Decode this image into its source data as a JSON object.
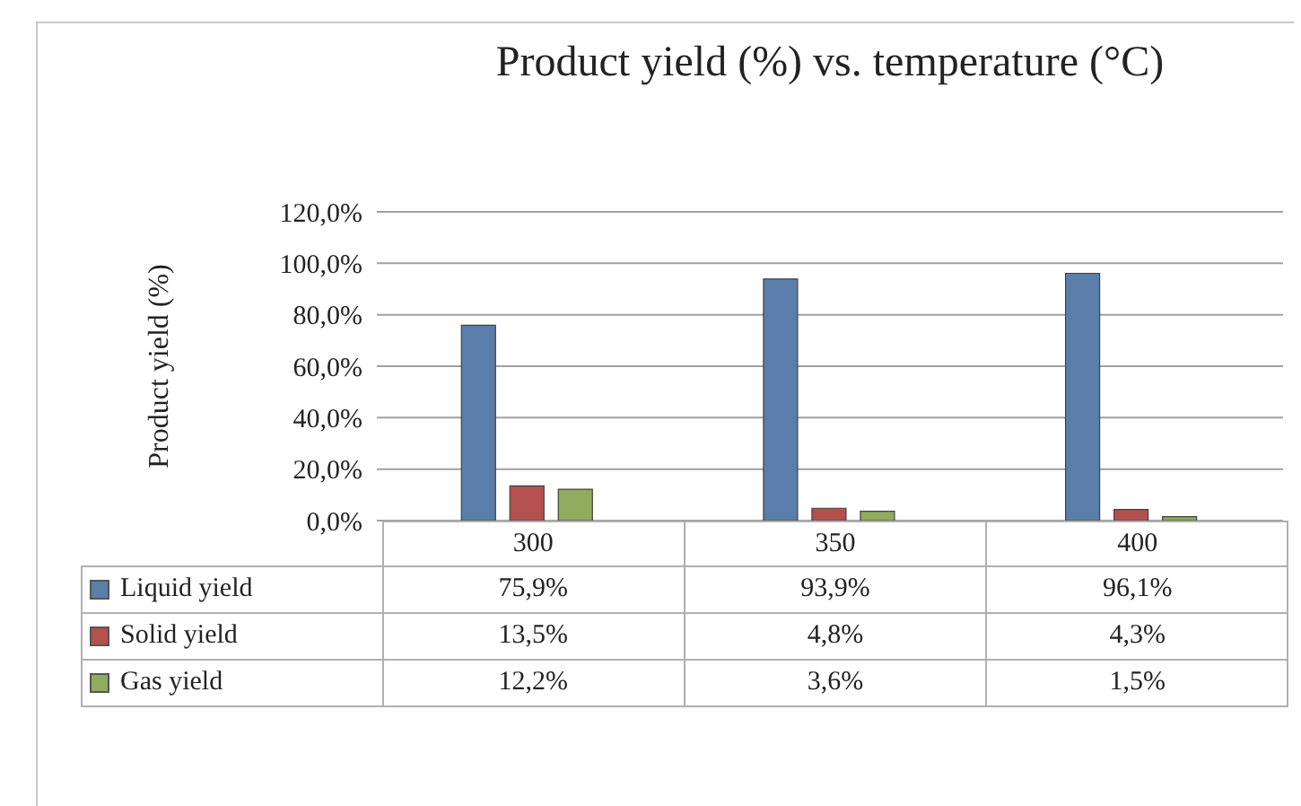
{
  "chart_data": {
    "type": "bar",
    "title": "Product yield (%) vs. temperature (°C)",
    "ylabel": "Product yield (%)",
    "categories": [
      "300",
      "350",
      "400"
    ],
    "series": [
      {
        "name": "Liquid yield",
        "color": "#5a7ea9",
        "values": [
          75.9,
          93.9,
          96.1
        ],
        "value_labels": [
          "75,9%",
          "93,9%",
          "96,1%"
        ]
      },
      {
        "name": "Solid yield",
        "color": "#b4504d",
        "values": [
          13.5,
          4.8,
          4.3
        ],
        "value_labels": [
          "13,5%",
          "4,8%",
          "4,3%"
        ]
      },
      {
        "name": "Gas yield",
        "color": "#8fad5d",
        "values": [
          12.2,
          3.6,
          1.5
        ],
        "value_labels": [
          "12,2%",
          "3,6%",
          "1,5%"
        ]
      }
    ],
    "ylim": [
      0,
      120
    ],
    "yticks": [
      {
        "value": 0,
        "label": "0,0%"
      },
      {
        "value": 20,
        "label": "20,0%"
      },
      {
        "value": 40,
        "label": "40,0%"
      },
      {
        "value": 60,
        "label": "60,0%"
      },
      {
        "value": 80,
        "label": "80,0%"
      },
      {
        "value": 100,
        "label": "100,0%"
      },
      {
        "value": 120,
        "label": "120,0%"
      }
    ],
    "grid": "y",
    "legend": "bottom left"
  }
}
